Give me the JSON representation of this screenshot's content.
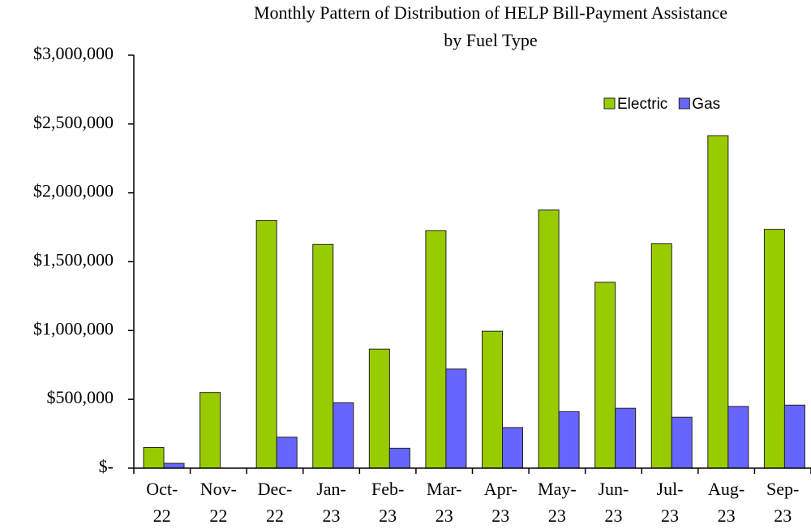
{
  "chart_data": {
    "type": "bar",
    "title": [
      "Monthly Pattern of Distribution of HELP Bill-Payment Assistance",
      "by Fuel Type"
    ],
    "categories": [
      "Oct-22",
      "Nov-22",
      "Dec-22",
      "Jan-23",
      "Feb-23",
      "Mar-23",
      "Apr-23",
      "May-23",
      "Jun-23",
      "Jul-23",
      "Aug-23",
      "Sep-23"
    ],
    "series": [
      {
        "name": "Electric",
        "color": "#99cc00",
        "values": [
          150000,
          550000,
          1800000,
          1625000,
          865000,
          1725000,
          995000,
          1875000,
          1350000,
          1630000,
          2415000,
          1735000
        ]
      },
      {
        "name": "Gas",
        "color": "#6666ff",
        "values": [
          35000,
          0,
          225000,
          475000,
          145000,
          720000,
          295000,
          410000,
          435000,
          370000,
          448000,
          458000
        ]
      }
    ],
    "ylim": [
      0,
      3000000
    ],
    "yticks": [
      {
        "value": 0,
        "label": "$-"
      },
      {
        "value": 500000,
        "label": "$500,000"
      },
      {
        "value": 1000000,
        "label": "$1,000,000"
      },
      {
        "value": 1500000,
        "label": "$1,500,000"
      },
      {
        "value": 2000000,
        "label": "$2,000,000"
      },
      {
        "value": 2500000,
        "label": "$2,500,000"
      },
      {
        "value": 3000000,
        "label": "$3,000,000"
      }
    ],
    "grid": false,
    "legend": "top-right"
  }
}
